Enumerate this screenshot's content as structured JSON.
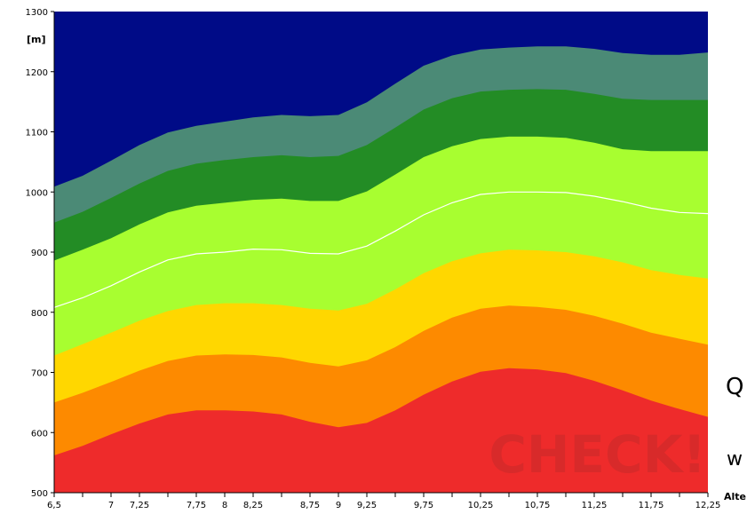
{
  "chart_data": {
    "type": "area",
    "title": "",
    "xlabel": "Alte",
    "ylabel": "[m]",
    "xlim": [
      6.5,
      12.25
    ],
    "ylim": [
      500,
      1300
    ],
    "x_ticks": [
      6.5,
      6.75,
      7,
      7.25,
      7.5,
      7.75,
      8,
      8.25,
      8.5,
      8.75,
      9,
      9.25,
      9.5,
      9.75,
      10,
      10.25,
      10.5,
      10.75,
      11,
      11.25,
      11.5,
      11.75,
      12,
      12.25
    ],
    "x_tick_labels": [
      "6,5",
      "",
      "7",
      "7,25",
      "",
      "7,75",
      "8",
      "8,25",
      "",
      "8,75",
      "9",
      "9,25",
      "",
      "9,75",
      "",
      "10,25",
      "",
      "10,75",
      "",
      "11,25",
      "",
      "11,75",
      "",
      "12,25"
    ],
    "y_ticks": [
      500,
      600,
      700,
      800,
      900,
      1000,
      1100,
      1200,
      1300
    ],
    "y_tick_labels": [
      "500",
      "600",
      "700",
      "800",
      "900",
      "1000",
      "1100",
      "1200",
      "1300"
    ],
    "grid": false,
    "legend": "none",
    "background_color": "#000b87",
    "x": [
      6.5,
      6.75,
      7,
      7.25,
      7.5,
      7.75,
      8,
      8.25,
      8.5,
      8.75,
      9,
      9.25,
      9.5,
      9.75,
      10,
      10.25,
      10.5,
      10.75,
      11,
      11.25,
      11.5,
      11.75,
      12,
      12.25
    ],
    "series": [
      {
        "color": "#ee2b2b",
        "values": [
          562,
          578,
          597,
          615,
          630,
          637,
          637,
          635,
          630,
          618,
          609,
          616,
          637,
          663,
          685,
          701,
          707,
          705,
          699,
          686,
          670,
          653,
          639,
          626
        ]
      },
      {
        "color": "#fd8a00",
        "values": [
          650,
          666,
          684,
          703,
          719,
          728,
          730,
          729,
          725,
          716,
          710,
          720,
          742,
          769,
          791,
          806,
          811,
          809,
          804,
          794,
          781,
          766,
          756,
          746
        ]
      },
      {
        "color": "#ffd700",
        "values": [
          728,
          747,
          766,
          786,
          802,
          812,
          815,
          815,
          812,
          806,
          803,
          814,
          838,
          865,
          885,
          898,
          904,
          903,
          900,
          893,
          883,
          870,
          862,
          856
        ]
      },
      {
        "color": "#a8fe30",
        "values": [
          886,
          904,
          923,
          946,
          966,
          977,
          982,
          987,
          989,
          985,
          985,
          1001,
          1029,
          1058,
          1076,
          1088,
          1092,
          1092,
          1090,
          1082,
          1071,
          1068,
          1068,
          1068
        ]
      },
      {
        "color": "#238c25",
        "values": [
          949,
          967,
          990,
          1014,
          1035,
          1047,
          1053,
          1058,
          1061,
          1058,
          1060,
          1078,
          1107,
          1137,
          1156,
          1167,
          1170,
          1171,
          1170,
          1163,
          1155,
          1153,
          1153,
          1153
        ]
      },
      {
        "color": "#4b8a76",
        "values": [
          1009,
          1027,
          1052,
          1078,
          1099,
          1110,
          1117,
          1124,
          1128,
          1126,
          1128,
          1149,
          1180,
          1210,
          1227,
          1237,
          1240,
          1242,
          1242,
          1238,
          1231,
          1228,
          1228,
          1232
        ]
      }
    ],
    "median_line": {
      "color": "#ffffff",
      "values": [
        808,
        824,
        844,
        867,
        887,
        897,
        900,
        905,
        904,
        898,
        897,
        910,
        935,
        962,
        982,
        996,
        1000,
        1000,
        999,
        993,
        984,
        973,
        966,
        964
      ]
    }
  },
  "watermark": "CHECK!",
  "side_labels": {
    "q": "Q",
    "w": "w"
  }
}
